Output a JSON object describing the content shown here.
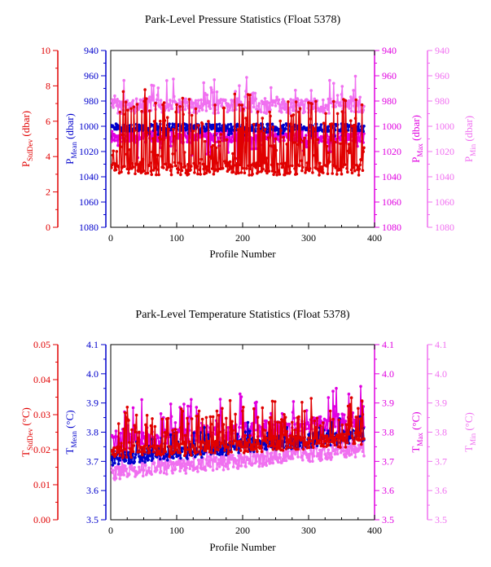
{
  "colors": {
    "stddev": "#e00000",
    "mean": "#0000cc",
    "max": "#e000e0",
    "min": "#f070f0",
    "axis": "#000000"
  },
  "chart_data": [
    {
      "type": "line",
      "title": "Park-Level Pressure Statistics (Float 5378)",
      "xlabel": "Profile Number",
      "xlim": [
        0,
        400
      ],
      "x_ticks": [
        "0",
        "100",
        "200",
        "300",
        "400"
      ],
      "axes": {
        "stddev": {
          "label_main": "P",
          "label_sub": "StdDev",
          "label_unit": " (dbar)",
          "lim": [
            0,
            10
          ],
          "ticks": [
            "0",
            "2",
            "4",
            "6",
            "8",
            "10"
          ]
        },
        "mean": {
          "label_main": "P",
          "label_sub": "Mean",
          "label_unit": " (dbar)",
          "lim": [
            1080,
            940
          ],
          "ticks": [
            "940",
            "960",
            "980",
            "1000",
            "1020",
            "1040",
            "1060",
            "1080"
          ]
        },
        "max": {
          "label_main": "P",
          "label_sub": "Max",
          "label_unit": " (dbar)",
          "lim": [
            1080,
            940
          ],
          "ticks": [
            "940",
            "960",
            "980",
            "1000",
            "1020",
            "1040",
            "1060",
            "1080"
          ]
        },
        "min": {
          "label_main": "P",
          "label_sub": "Min",
          "label_unit": " (dbar)",
          "lim": [
            1080,
            940
          ],
          "ticks": [
            "940",
            "960",
            "980",
            "1000",
            "1020",
            "1040",
            "1060",
            "1080"
          ]
        }
      },
      "n_profiles": 384,
      "series": [
        {
          "key": "min",
          "base": 984,
          "noise": 6,
          "spike": 20,
          "spike_dir": -1,
          "spike_prob": 0.12,
          "seed": 7,
          "trend": [
            0,
            0
          ]
        },
        {
          "key": "max",
          "base": 1008,
          "noise": 5,
          "spike": 14,
          "spike_dir": 1,
          "spike_prob": 0.1,
          "seed": 11,
          "trend": [
            0,
            0
          ]
        },
        {
          "key": "mean",
          "base": 1001,
          "noise": 3,
          "spike": 6,
          "spike_dir": 1,
          "spike_prob": 0.1,
          "seed": 3,
          "trend": [
            0,
            0
          ]
        },
        {
          "key": "stddev",
          "base": 3.3,
          "noise": 0.35,
          "spike": 4.2,
          "spike_dir": 1,
          "spike_prob": 0.45,
          "seed": 19,
          "trend": [
            0,
            0
          ]
        }
      ]
    },
    {
      "type": "line",
      "title": "Park-Level Temperature Statistics (Float 5378)",
      "xlabel": "Profile Number",
      "xlim": [
        0,
        400
      ],
      "x_ticks": [
        "0",
        "100",
        "200",
        "300",
        "400"
      ],
      "axes": {
        "stddev": {
          "label_main": "T",
          "label_sub": "StdDev",
          "label_unit": " (°C)",
          "lim": [
            0,
            0.05
          ],
          "ticks": [
            "0.00",
            "0.01",
            "0.02",
            "0.03",
            "0.04",
            "0.05"
          ]
        },
        "mean": {
          "label_main": "T",
          "label_sub": "Mean",
          "label_unit": " (°C)",
          "lim": [
            3.5,
            4.1
          ],
          "ticks": [
            "3.5",
            "3.6",
            "3.7",
            "3.8",
            "3.9",
            "4.0",
            "4.1"
          ]
        },
        "max": {
          "label_main": "T",
          "label_sub": "Max",
          "label_unit": " (°C)",
          "lim": [
            3.5,
            4.1
          ],
          "ticks": [
            "3.5",
            "3.6",
            "3.7",
            "3.8",
            "3.9",
            "4.0",
            "4.1"
          ]
        },
        "min": {
          "label_main": "T",
          "label_sub": "Min",
          "label_unit": " (°C)",
          "lim": [
            3.5,
            4.1
          ],
          "ticks": [
            "3.5",
            "3.6",
            "3.7",
            "3.8",
            "3.9",
            "4.0",
            "4.1"
          ]
        }
      },
      "n_profiles": 384,
      "series": [
        {
          "key": "min",
          "base": 3.66,
          "noise": 0.025,
          "spike": 0.08,
          "spike_dir": 1,
          "spike_prob": 0.15,
          "seed": 23,
          "trend": [
            0.0,
            0.08
          ]
        },
        {
          "key": "max",
          "base": 3.76,
          "noise": 0.03,
          "spike": 0.12,
          "spike_dir": 1,
          "spike_prob": 0.15,
          "seed": 29,
          "trend": [
            0.0,
            0.08
          ]
        },
        {
          "key": "mean",
          "base": 3.71,
          "noise": 0.025,
          "spike": 0.06,
          "spike_dir": 1,
          "spike_prob": 0.12,
          "seed": 31,
          "trend": [
            0.0,
            0.08
          ]
        },
        {
          "key": "stddev",
          "base": 0.019,
          "noise": 0.002,
          "spike": 0.012,
          "spike_dir": 1,
          "spike_prob": 0.3,
          "seed": 37,
          "trend": [
            0.0,
            0.004
          ]
        }
      ]
    }
  ]
}
